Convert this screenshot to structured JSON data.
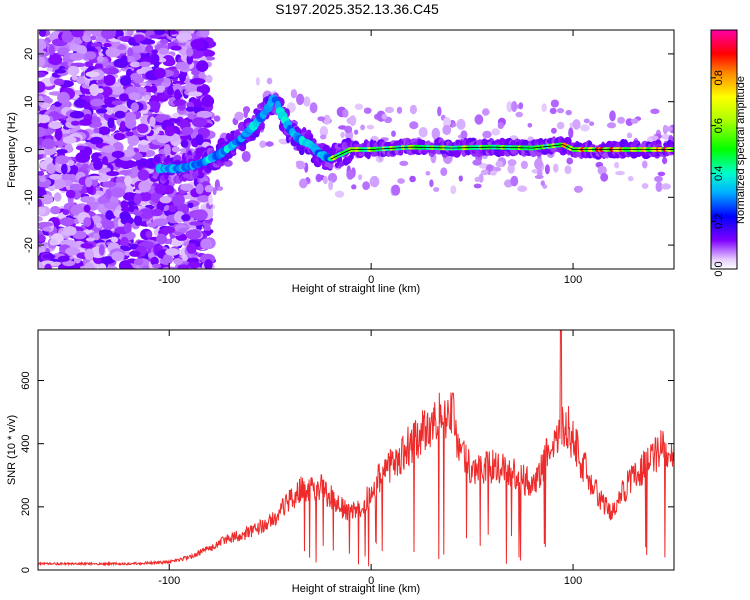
{
  "title": "S197.2025.352.13.36.C45",
  "chart_data": [
    {
      "type": "heatmap",
      "xlabel": "Height of straight line (km)",
      "ylabel": "Frequency (Hz)",
      "xlim": [
        -165,
        150
      ],
      "ylim": [
        -25,
        25
      ],
      "xticks": [
        -100,
        0,
        100
      ],
      "yticks": [
        -20,
        -10,
        0,
        10,
        20
      ],
      "xtick_labels": [
        "-100",
        "0",
        "100"
      ],
      "ytick_labels": [
        "-20",
        "-10",
        "0",
        "10",
        "20"
      ],
      "ridge": {
        "x": [
          -105,
          -95,
          -85,
          -75,
          -65,
          -58,
          -52,
          -48,
          -45,
          -40,
          -35,
          -30,
          -25,
          -20,
          -15,
          -10,
          0,
          20,
          40,
          60,
          80,
          95,
          100,
          120,
          150
        ],
        "freq": [
          -4,
          -4,
          -3,
          -1,
          2,
          5,
          8,
          11,
          8,
          4,
          2,
          1,
          -1,
          -2,
          -1,
          0,
          0,
          0.5,
          0.3,
          0.5,
          0.3,
          1,
          0,
          0,
          0
        ]
      },
      "colorbar": {
        "label": "Normalized spectral amplitude",
        "range": [
          0,
          1
        ],
        "ticks": [
          0.0,
          0.2,
          0.4,
          0.6,
          0.8
        ],
        "tick_labels": [
          "0.0",
          "0.2",
          "0.4",
          "0.6",
          "0.8"
        ]
      }
    },
    {
      "type": "line",
      "xlabel": "Height of straight line (km)",
      "ylabel": "SNR (10 * v/v)",
      "xlim": [
        -165,
        150
      ],
      "ylim": [
        0,
        760
      ],
      "xticks": [
        -100,
        0,
        100
      ],
      "yticks": [
        0,
        200,
        400,
        600
      ],
      "xtick_labels": [
        "-100",
        "0",
        "100"
      ],
      "ytick_labels": [
        "0",
        "200",
        "400",
        "600"
      ],
      "color": "#ee2a2a",
      "envelope": {
        "x": [
          -165,
          -120,
          -100,
          -90,
          -80,
          -70,
          -60,
          -50,
          -40,
          -35,
          -30,
          -25,
          -20,
          -15,
          -10,
          -5,
          0,
          5,
          10,
          20,
          30,
          35,
          40,
          45,
          50,
          60,
          70,
          80,
          85,
          90,
          95,
          100,
          105,
          110,
          115,
          120,
          125,
          130,
          135,
          140,
          145,
          150
        ],
        "y": [
          20,
          20,
          25,
          40,
          70,
          100,
          120,
          150,
          220,
          260,
          250,
          260,
          230,
          200,
          180,
          190,
          250,
          300,
          330,
          400,
          470,
          490,
          480,
          360,
          320,
          330,
          310,
          270,
          330,
          420,
          470,
          420,
          330,
          270,
          210,
          180,
          250,
          300,
          330,
          370,
          380,
          340
        ]
      }
    }
  ]
}
